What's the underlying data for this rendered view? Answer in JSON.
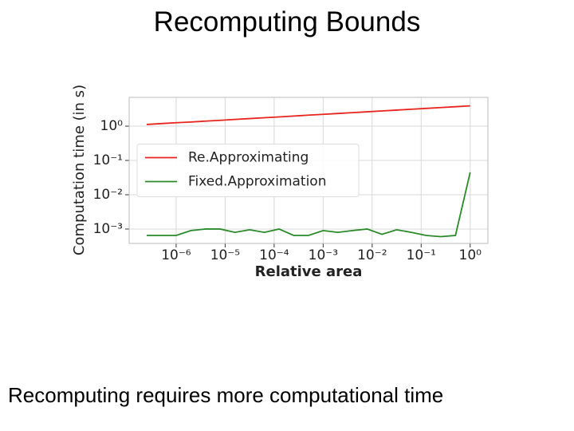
{
  "title": "Recomputing Bounds",
  "caption": "Recomputing requires more computational time",
  "chart_data": {
    "type": "line",
    "x_label": "Relative area",
    "y_label": "Computation time (in s)",
    "x_log": true,
    "y_log": true,
    "grid": true,
    "legend": "center left",
    "x": [
      2.51e-07,
      5.01e-07,
      1e-06,
      2e-06,
      3.98e-06,
      7.94e-06,
      1.58e-05,
      3.16e-05,
      6.31e-05,
      0.000126,
      0.000251,
      0.000501,
      0.001,
      0.002,
      0.00398,
      0.00794,
      0.0158,
      0.0316,
      0.0631,
      0.126,
      0.251,
      0.501,
      1
    ],
    "series": [
      {
        "name": "Re.Approximating",
        "color": "#e8241c",
        "values": [
          1.12,
          1.19,
          1.26,
          1.32,
          1.4,
          1.48,
          1.57,
          1.66,
          1.76,
          1.86,
          1.97,
          2.09,
          2.21,
          2.34,
          2.48,
          2.62,
          2.78,
          2.94,
          3.11,
          3.29,
          3.49,
          3.69,
          3.9
        ]
      },
      {
        "name": "Fixed.Approximation",
        "color": "#2a8a2a",
        "values": [
          0.00065,
          0.00065,
          0.00065,
          0.0009,
          0.001,
          0.001,
          0.0008,
          0.00095,
          0.0008,
          0.001,
          0.00065,
          0.00065,
          0.0009,
          0.0008,
          0.0009,
          0.001,
          0.0007,
          0.00095,
          0.0008,
          0.00065,
          0.0006,
          0.00065,
          0.045
        ]
      }
    ],
    "xlim": [
      1.1e-07,
      2.3
    ],
    "ylim": [
      0.00038,
      6.9
    ],
    "xticks": [
      {
        "value": 1e-06,
        "label": "10⁻⁶"
      },
      {
        "value": 1e-05,
        "label": "10⁻⁵"
      },
      {
        "value": 0.0001,
        "label": "10⁻⁴"
      },
      {
        "value": 0.001,
        "label": "10⁻³"
      },
      {
        "value": 0.01,
        "label": "10⁻²"
      },
      {
        "value": 0.1,
        "label": "10⁻¹"
      },
      {
        "value": 1,
        "label": "10⁰"
      }
    ],
    "yticks": [
      {
        "value": 0.001,
        "label": "10⁻³"
      },
      {
        "value": 0.01,
        "label": "10⁻²"
      },
      {
        "value": 0.1,
        "label": "10⁻¹"
      },
      {
        "value": 1,
        "label": "10⁰"
      }
    ]
  }
}
